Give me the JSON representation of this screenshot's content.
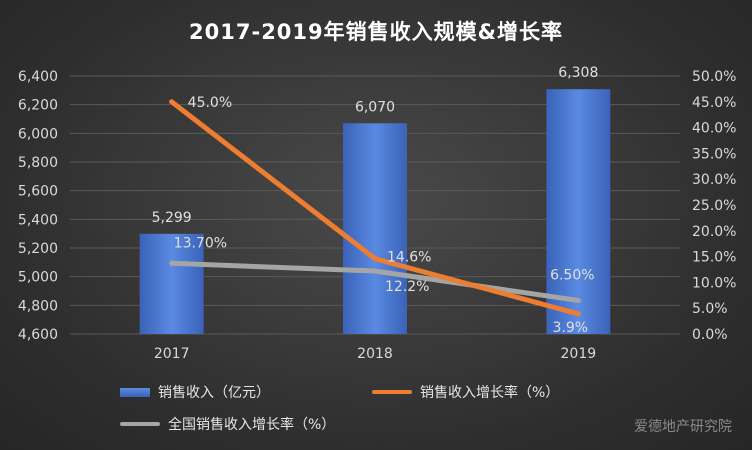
{
  "chart_data": {
    "type": "bar",
    "title": "2017-2019年销售收入规模&增长率",
    "categories": [
      "2017",
      "2018",
      "2019"
    ],
    "ylim": [
      4600,
      6400
    ],
    "y_ticks": [
      "4,600",
      "4,800",
      "5,000",
      "5,200",
      "5,400",
      "5,600",
      "5,800",
      "6,000",
      "6,200",
      "6,400"
    ],
    "y2lim": [
      0,
      50
    ],
    "y2_ticks": [
      "0.0%",
      "5.0%",
      "10.0%",
      "15.0%",
      "20.0%",
      "25.0%",
      "30.0%",
      "35.0%",
      "40.0%",
      "45.0%",
      "50.0%"
    ],
    "grid": true,
    "legend_position": "bottom",
    "series": [
      {
        "name": "销售收入（亿元）",
        "kind": "bar",
        "axis": "left",
        "color": "#4472c4",
        "values": [
          5299,
          6070,
          6308
        ],
        "labels": [
          "5,299",
          "6,070",
          "6,308"
        ]
      },
      {
        "name": "销售收入增长率（%）",
        "kind": "line",
        "axis": "right",
        "color": "#ed7d31",
        "values": [
          45.0,
          14.6,
          3.9
        ],
        "labels": [
          "45.0%",
          "14.6%",
          "3.9%"
        ]
      },
      {
        "name": "全国销售收入增长率（%）",
        "kind": "line",
        "axis": "right",
        "color": "#a5a5a5",
        "values": [
          13.7,
          12.2,
          6.5
        ],
        "labels": [
          "13.70%",
          "12.2%",
          "6.50%"
        ]
      }
    ]
  },
  "watermark": "爱德地产研究院"
}
